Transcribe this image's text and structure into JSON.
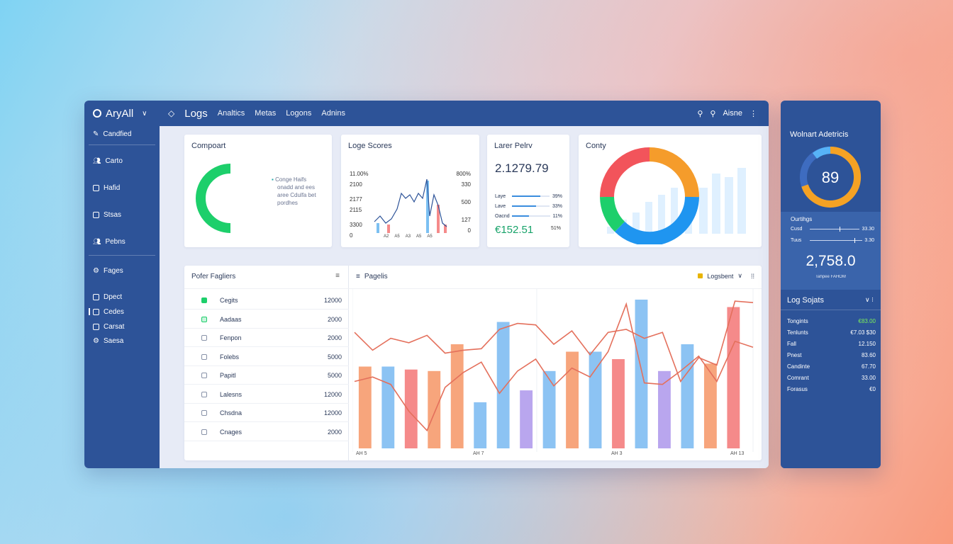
{
  "app": {
    "brand": "AryAll",
    "tab_title": "Logs",
    "nav_items": [
      "Analtics",
      "Metas",
      "Logons",
      "Adnins"
    ],
    "account_label": "Aisne"
  },
  "sidebar": {
    "items": [
      "Candfied",
      "Carto",
      "Hafid",
      "Stsas",
      "Pebns",
      "Fages",
      "Dpect",
      "Cedes",
      "Carsat",
      "Saesa"
    ]
  },
  "cards": {
    "component": {
      "title": "Compoart",
      "legend": [
        "Conge Haifs",
        "onadd and ees",
        "aree Cdulfa bet",
        "pordhes"
      ],
      "arc_fraction": 0.5,
      "color": "#1dcf6b"
    },
    "log_scores": {
      "title": "Loge Scores",
      "left_ticks": [
        "11.00%",
        "2100",
        "2177",
        "2115",
        "3300",
        "0"
      ],
      "right_ticks": [
        "800%",
        "330",
        "500",
        "127",
        "0"
      ],
      "x_ticks": [
        "A2",
        "A5",
        "A3",
        "A5",
        "A5"
      ]
    },
    "latest": {
      "title": "Larer Pelrv",
      "big_value": "2.1279.79",
      "rows": [
        {
          "label": "Laye",
          "value": "39%",
          "fill": 0.75
        },
        {
          "label": "Lave",
          "value": "33%",
          "fill": 0.65
        },
        {
          "label": "Oacnd",
          "value": "11%",
          "fill": 0.45
        }
      ],
      "money": "€152.51",
      "money_note": "51%"
    },
    "config": {
      "title": "Conty"
    }
  },
  "table": {
    "title": "Pofer Fagliers",
    "rows": [
      {
        "name": "Cegits",
        "value": "12000",
        "mark": "green"
      },
      {
        "name": "Aadaas",
        "value": "2000",
        "mark": "outline-green"
      },
      {
        "name": "Fenpon",
        "value": "2000",
        "mark": "box"
      },
      {
        "name": "Folebs",
        "value": "5000",
        "mark": "box"
      },
      {
        "name": "Papitl",
        "value": "5000",
        "mark": "box"
      },
      {
        "name": "Lalesns",
        "value": "12000",
        "mark": "box"
      },
      {
        "name": "Chsdna",
        "value": "12000",
        "mark": "box"
      },
      {
        "name": "Cnages",
        "value": "2000",
        "mark": "box"
      }
    ]
  },
  "main_chart": {
    "panel_title": "Pagelis",
    "dropdown_label": "Logsbent",
    "x_ticks": [
      "AH 5",
      "AH 7",
      "AH 3",
      "AH 13"
    ]
  },
  "chart_data": {
    "type": "bar",
    "series": [
      {
        "values": [
          0.55,
          0.55,
          0.53,
          0.52,
          0.7,
          0.31,
          0.85,
          0.39,
          0.52,
          0.65,
          0.65,
          0.6,
          1.0,
          0.52,
          0.7,
          0.57,
          0.95
        ]
      }
    ],
    "bar_colors": [
      "#f7a57c",
      "#8cc3f3",
      "#f58a8a",
      "#f7a57c",
      "#f7a57c",
      "#8cc3f3",
      "#8cc3f3",
      "#b9a6ee",
      "#8cc3f3",
      "#f7a57c",
      "#8cc3f3",
      "#f58a8a",
      "#8cc3f3",
      "#b9a6ee",
      "#8cc3f3",
      "#f7a57c",
      "#f58a8a"
    ],
    "line1": [
      0.78,
      0.66,
      0.74,
      0.71,
      0.76,
      0.64,
      0.66,
      0.67,
      0.8,
      0.84,
      0.83,
      0.7,
      0.79,
      0.63,
      0.78,
      0.8,
      0.74,
      0.78,
      0.45,
      0.61,
      0.56,
      0.99,
      0.98
    ],
    "line2": [
      0.45,
      0.48,
      0.43,
      0.25,
      0.12,
      0.41,
      0.51,
      0.58,
      0.37,
      0.52,
      0.6,
      0.42,
      0.54,
      0.48,
      0.65,
      0.97,
      0.44,
      0.43,
      0.52,
      0.62,
      0.45,
      0.72,
      0.68
    ],
    "line_color": "#e4705c"
  },
  "right_panel": {
    "title": "Wolnart Adetricis",
    "gauge_value": "89",
    "gauge_fraction": 0.6,
    "section_title": "Ourtihgs",
    "sliders": [
      {
        "label": "Cusd",
        "value": "33.30",
        "pos": 0.6
      },
      {
        "label": "Tuus",
        "value": "3.30",
        "pos": 0.85
      }
    ],
    "big_value": "2,758.0",
    "big_note": "Tahpee FAHOM",
    "list_title": "Log Sojats",
    "list": [
      {
        "label": "Tongints",
        "value": "€83.00",
        "color": "#7df05a"
      },
      {
        "label": "Tenlunts",
        "value": "€7.03 $30",
        "color": "#ffffff"
      },
      {
        "label": "Fall",
        "value": "12.150",
        "color": "#ffffff"
      },
      {
        "label": "Pnest",
        "value": "83.60",
        "color": "#ffffff"
      },
      {
        "label": "Candinte",
        "value": "67.70",
        "color": "#ffffff"
      },
      {
        "label": "Comrant",
        "value": "33.00",
        "color": "#ffffff"
      },
      {
        "label": "Forasus",
        "value": "€0",
        "color": "#ffffff"
      }
    ]
  }
}
